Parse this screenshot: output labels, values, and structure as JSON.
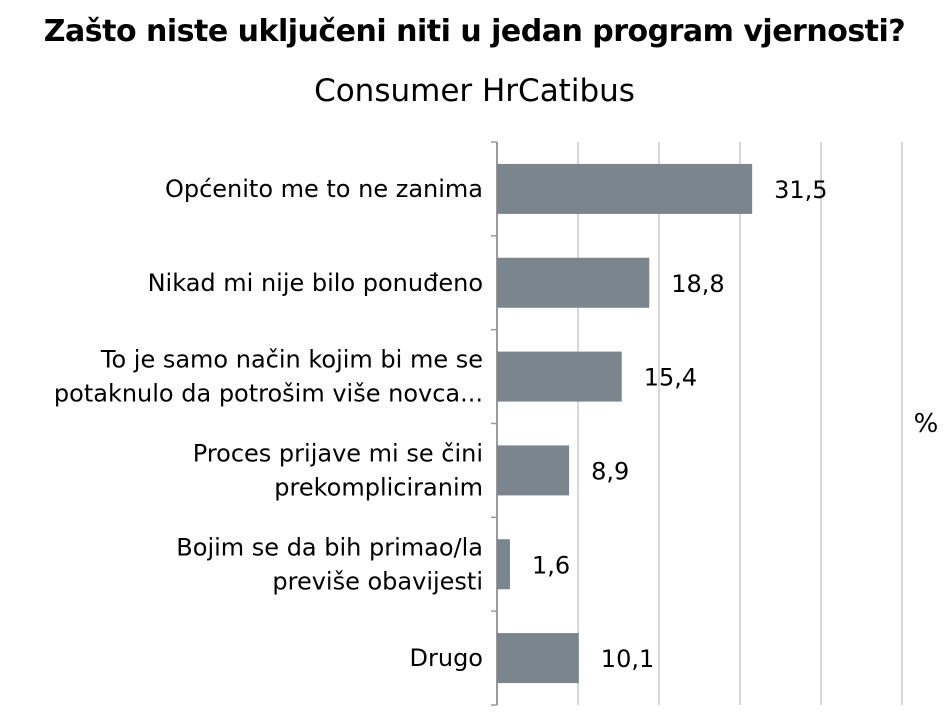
{
  "chart_data": {
    "type": "bar",
    "orientation": "horizontal",
    "title": "Zašto niste uključeni niti u jedan program vjernosti?",
    "subtitle": "Consumer HrCatibus",
    "unit_label": "%",
    "categories": [
      [
        "Općenito me to ne zanima"
      ],
      [
        "Nikad mi nije bilo ponuđeno"
      ],
      [
        "To je samo način kojim bi me se",
        "potaknulo da potrošim više novca..."
      ],
      [
        "Proces prijave mi se čini",
        "prekompliciranim"
      ],
      [
        "Bojim se da bih primao/la",
        "previše obavijesti"
      ],
      [
        "Drugo"
      ]
    ],
    "values": [
      31.5,
      18.8,
      15.4,
      8.9,
      1.6,
      10.1
    ],
    "value_labels": [
      "31,5",
      "18,8",
      "15,4",
      "8,9",
      "1,6",
      "10,1"
    ],
    "xlim": [
      0,
      50
    ],
    "grid": true,
    "colors": {
      "bar": "#7b858d",
      "grid": "#c8c8c8",
      "axis": "#9a9a9a"
    }
  }
}
